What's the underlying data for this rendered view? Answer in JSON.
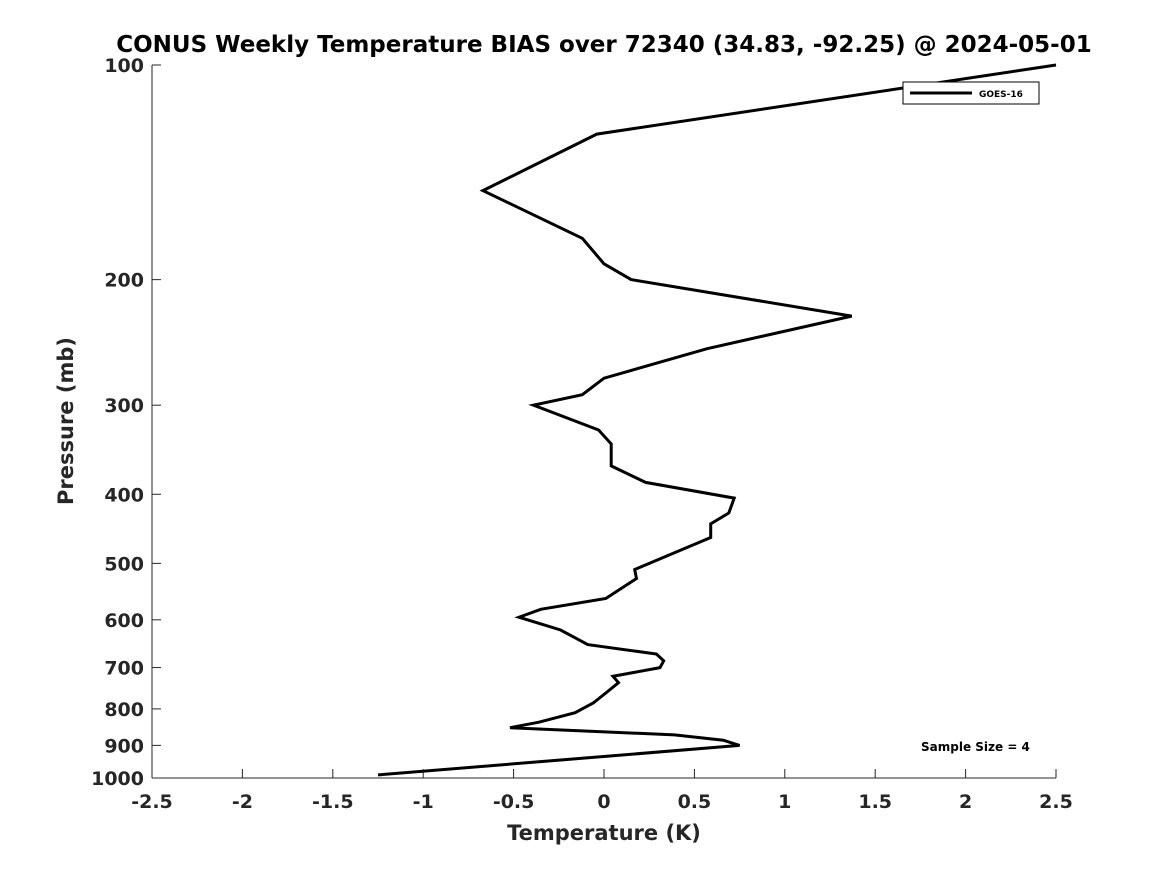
{
  "chart_data": {
    "type": "line",
    "title": "CONUS Weekly Temperature BIAS over 72340 (34.83, -92.25) @ 2024-05-01",
    "xlabel": "Temperature (K)",
    "ylabel": "Pressure (mb)",
    "xlim": [
      -2.5,
      2.5
    ],
    "ylim": [
      1000,
      100
    ],
    "yscale": "log",
    "y_reversed": true,
    "grid": false,
    "legend_position": "top-right",
    "x_ticks": [
      -2.5,
      -2,
      -1.5,
      -1,
      -0.5,
      0,
      0.5,
      1,
      1.5,
      2,
      2.5
    ],
    "x_tick_labels": [
      "-2.5",
      "-2",
      "-1.5",
      "-1",
      "-0.5",
      "0",
      "0.5",
      "1",
      "1.5",
      "2",
      "2.5"
    ],
    "y_ticks": [
      100,
      200,
      300,
      400,
      500,
      600,
      700,
      800,
      900,
      1000
    ],
    "y_tick_labels": [
      "100",
      "200",
      "300",
      "400",
      "500",
      "600",
      "700",
      "800",
      "900",
      "1000"
    ],
    "series": [
      {
        "name": "GOES-16",
        "color": "#000000",
        "points": [
          [
            2.5,
            100
          ],
          [
            -0.04,
            125
          ],
          [
            -0.67,
            150
          ],
          [
            -0.12,
            175
          ],
          [
            0.0,
            190
          ],
          [
            0.15,
            200
          ],
          [
            1.37,
            225
          ],
          [
            0.57,
            250
          ],
          [
            0.0,
            275
          ],
          [
            -0.12,
            290
          ],
          [
            -0.39,
            300
          ],
          [
            -0.03,
            325
          ],
          [
            0.04,
            340
          ],
          [
            0.04,
            365
          ],
          [
            0.23,
            385
          ],
          [
            0.72,
            405
          ],
          [
            0.69,
            425
          ],
          [
            0.59,
            440
          ],
          [
            0.59,
            460
          ],
          [
            0.17,
            510
          ],
          [
            0.18,
            525
          ],
          [
            0.01,
            560
          ],
          [
            -0.35,
            580
          ],
          [
            -0.47,
            595
          ],
          [
            -0.24,
            620
          ],
          [
            -0.09,
            650
          ],
          [
            0.29,
            670
          ],
          [
            0.33,
            685
          ],
          [
            0.31,
            700
          ],
          [
            0.05,
            720
          ],
          [
            0.08,
            735
          ],
          [
            0.01,
            760
          ],
          [
            -0.06,
            785
          ],
          [
            -0.16,
            810
          ],
          [
            -0.36,
            835
          ],
          [
            -0.52,
            850
          ],
          [
            0.39,
            870
          ],
          [
            0.66,
            885
          ],
          [
            0.75,
            900
          ],
          [
            -1.25,
            990
          ]
        ]
      }
    ],
    "annotation": "Sample Size = 4"
  }
}
